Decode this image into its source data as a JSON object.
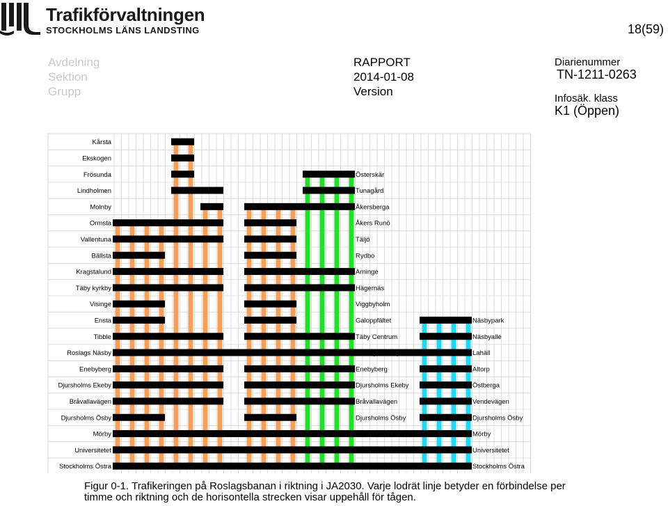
{
  "header": {
    "brand": "Trafikförvaltningen",
    "brand_sub": "STOCKHOLMS LÄNS LANDSTING",
    "page_number": "18(59)",
    "left_meta": [
      "Avdelning",
      "Sektion",
      "Grupp"
    ],
    "center_meta": [
      "RAPPORT",
      "2014-01-08",
      "Version"
    ],
    "right_label": "Diarienummer",
    "diarienummer": "TN-1211-0263",
    "infosak_label": "Infosäk. klass",
    "infosak_value": "K1 (Öppen)"
  },
  "colors": {
    "orange": "#f5a05a",
    "green": "#22e02a",
    "cyan": "#22d8f0",
    "black": "#000000",
    "grid": "#d4d4d4"
  },
  "diagram": {
    "left_branch_stations": [
      "Kårsta",
      "Ekskogen",
      "Frösunda",
      "Lindholmen",
      "Molnby",
      "Ormsta",
      "Vallentuna",
      "Bällsta",
      "Kragstalund",
      "Täby kyrkby",
      "Visinge",
      "Ensta",
      "Tibble",
      "Roslags Näsby",
      "Enebyberg",
      "Djursholms Ekeby",
      "Bråvallavägen",
      "Djursholms Ösby",
      "Mörby",
      "Universitetet",
      "Stockholms Östra"
    ],
    "middle_branch_stations": [
      "Österskär",
      "Tunagård",
      "Åkersberga",
      "Åkers Runö",
      "Täljö",
      "Rydbo",
      "Arninge",
      "Hägernäs",
      "Viggbyholm",
      "Galoppfältet",
      "Täby Centrum",
      "Roslags Näsby",
      "Enebyberg",
      "Djursholms Ekeby",
      "Bråvallavägen",
      "Djursholms Ösby"
    ],
    "right_branch_stations": [
      "Näsbypark",
      "Näsbyallé",
      "Lahäll",
      "Altorp",
      "Östberga",
      "Vendevägen",
      "Djursholms Ösby",
      "Mörby",
      "Universitetet",
      "Stockholms Östra"
    ]
  },
  "caption": {
    "line1": "Figur 0-1. Trafikeringen på Roslagsbanan i riktning i JA2030. Varje lodrät linje betyder en förbindelse per",
    "line2": "timme och riktning och de horisontella strecken visar uppehåll för tågen."
  }
}
